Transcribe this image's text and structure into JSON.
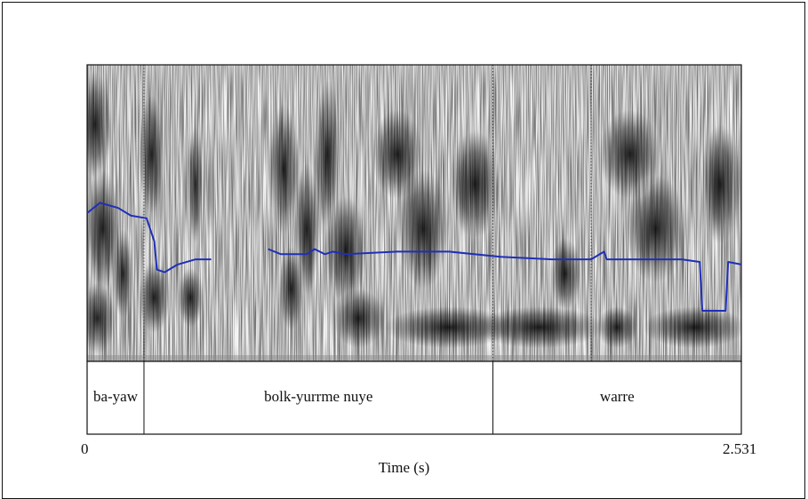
{
  "chart_data": {
    "type": "spectrogram",
    "xlabel": "Time (s)",
    "xlim": [
      0,
      2.531
    ],
    "x_tick_labels": [
      "0",
      "2.531"
    ],
    "pitch_color": "#1f2fb8",
    "pitch_track": [
      [
        [
          0.0,
          0.6
        ],
        [
          0.05,
          0.56
        ],
        [
          0.12,
          0.58
        ],
        [
          0.17,
          0.61
        ],
        [
          0.23,
          0.62
        ],
        [
          0.26,
          0.71
        ],
        [
          0.27,
          0.82
        ],
        [
          0.3,
          0.83
        ],
        [
          0.35,
          0.8
        ],
        [
          0.42,
          0.78
        ],
        [
          0.48,
          0.78
        ]
      ],
      [
        [
          0.7,
          0.74
        ],
        [
          0.75,
          0.76
        ],
        [
          0.85,
          0.76
        ],
        [
          0.88,
          0.74
        ],
        [
          0.92,
          0.76
        ],
        [
          0.95,
          0.75
        ],
        [
          1.0,
          0.76
        ],
        [
          1.2,
          0.75
        ],
        [
          1.4,
          0.75
        ],
        [
          1.6,
          0.77
        ],
        [
          1.8,
          0.78
        ],
        [
          1.95,
          0.78
        ],
        [
          2.0,
          0.75
        ],
        [
          2.01,
          0.78
        ],
        [
          2.1,
          0.78
        ],
        [
          2.3,
          0.78
        ],
        [
          2.37,
          0.79
        ],
        [
          2.38,
          0.98
        ],
        [
          2.47,
          0.98
        ],
        [
          2.48,
          0.79
        ],
        [
          2.531,
          0.8
        ]
      ]
    ],
    "intervals": [
      {
        "label": "ba-yaw",
        "start": 0.0,
        "end": 0.22
      },
      {
        "label": "bolk-yurrme nuye",
        "start": 0.22,
        "end": 1.57
      },
      {
        "label": "warre",
        "start": 1.57,
        "end": 2.531
      }
    ],
    "spectrogram_boundaries": [
      0.22,
      1.57,
      1.95
    ]
  }
}
